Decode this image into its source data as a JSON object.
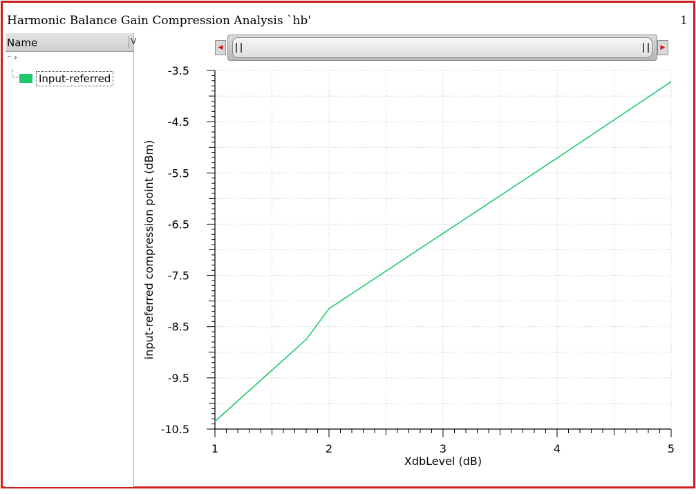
{
  "window": {
    "title": "Harmonic Balance Gain Compression Analysis `hb'",
    "page_number": "1",
    "frame_color": "#cc1f1f"
  },
  "sidebar": {
    "column_header": "Name",
    "column_header_clipped": "V",
    "tree_toggle": "⁻ ›",
    "items": [
      {
        "label": "Input-referred",
        "color": "#1ec86b"
      }
    ]
  },
  "scrollbar": {
    "left_arrow_icon": "triangle-left-icon",
    "right_arrow_icon": "triangle-right-icon",
    "position_fraction": 1.0
  },
  "chart_data": {
    "type": "line",
    "xlabel": "XdbLevel (dB)",
    "ylabel": "input-referred compression point (dBm)",
    "xlim": [
      1,
      5
    ],
    "ylim": [
      -10.5,
      -3.5
    ],
    "x_ticks": [
      "1",
      "2",
      "3",
      "4",
      "5"
    ],
    "y_ticks": [
      "-3.5",
      "-4.5",
      "-5.5",
      "-6.5",
      "-7.5",
      "-8.5",
      "-9.5",
      "-10.5"
    ],
    "grid": true,
    "series": [
      {
        "name": "Input-referred",
        "color": "#1ec86b",
        "x": [
          1,
          1.4,
          1.8,
          2,
          3,
          4,
          5
        ],
        "y": [
          -10.35,
          -9.55,
          -8.75,
          -8.15,
          -6.68,
          -5.21,
          -3.72
        ]
      }
    ]
  }
}
